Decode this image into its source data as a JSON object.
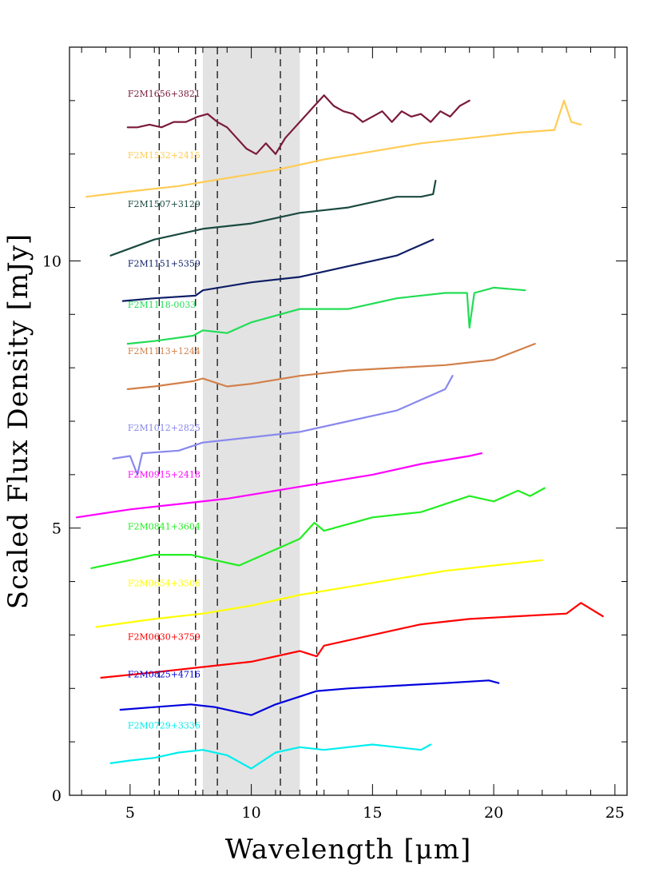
{
  "chart_data": {
    "type": "line",
    "xlabel": "Wavelength [μm]",
    "ylabel": "Scaled Flux Density [mJy]",
    "xlim": [
      2.5,
      25.5
    ],
    "ylim": [
      0,
      14
    ],
    "x_ticks": [
      5,
      10,
      15,
      20,
      25
    ],
    "y_ticks": [
      0,
      5,
      10
    ],
    "shaded_band": [
      8,
      12
    ],
    "dashed_lines": [
      6.2,
      7.7,
      8.6,
      11.2,
      12.7
    ],
    "grid": false,
    "series": [
      {
        "name": "F2M1656+3821",
        "color": "#7a1a3a",
        "x": [
          4.9,
          5.3,
          5.8,
          6.3,
          6.8,
          7.3,
          7.8,
          8.2,
          8.6,
          9.0,
          9.4,
          9.8,
          10.2,
          10.6,
          11.0,
          11.4,
          11.8,
          12.2,
          12.6,
          13.0,
          13.4,
          13.8,
          14.2,
          14.6,
          15.0,
          15.4,
          15.8,
          16.2,
          16.6,
          17.0,
          17.4,
          17.8,
          18.2,
          18.6,
          19.0
        ],
        "y": [
          12.5,
          12.5,
          12.55,
          12.5,
          12.6,
          12.6,
          12.7,
          12.75,
          12.6,
          12.5,
          12.3,
          12.1,
          12.0,
          12.2,
          12.0,
          12.3,
          12.5,
          12.7,
          12.9,
          13.1,
          12.9,
          12.8,
          12.75,
          12.6,
          12.7,
          12.8,
          12.6,
          12.8,
          12.7,
          12.75,
          12.6,
          12.8,
          12.7,
          12.9,
          13.0
        ]
      },
      {
        "name": "F2M1532+2415",
        "color": "#ffcc55",
        "x": [
          3.2,
          5,
          7,
          9,
          11,
          13,
          15,
          17,
          19,
          21,
          22.5,
          22.9,
          23.2,
          23.6
        ],
        "y": [
          11.2,
          11.3,
          11.4,
          11.55,
          11.7,
          11.9,
          12.05,
          12.2,
          12.3,
          12.4,
          12.45,
          13.0,
          12.6,
          12.55
        ]
      },
      {
        "name": "F2M1507+3129",
        "color": "#1a4a40",
        "x": [
          4.2,
          6,
          8,
          10,
          12,
          14,
          15,
          16,
          17,
          17.5,
          17.6
        ],
        "y": [
          10.1,
          10.4,
          10.6,
          10.7,
          10.9,
          11.0,
          11.1,
          11.2,
          11.2,
          11.25,
          11.5
        ]
      },
      {
        "name": "F2M1151+5359",
        "color": "#0e1e66",
        "x": [
          4.7,
          6,
          7.7,
          8,
          10,
          12,
          14,
          15,
          16,
          17.5
        ],
        "y": [
          9.25,
          9.3,
          9.35,
          9.45,
          9.6,
          9.7,
          9.9,
          10.0,
          10.1,
          10.4
        ]
      },
      {
        "name": "F2M1118-0033",
        "color": "#22dd55",
        "x": [
          4.9,
          6,
          7.6,
          8,
          9,
          10,
          12,
          14,
          16,
          18,
          18.9,
          19.0,
          19.2,
          20,
          21.3
        ],
        "y": [
          8.45,
          8.5,
          8.6,
          8.7,
          8.65,
          8.85,
          9.1,
          9.1,
          9.3,
          9.4,
          9.4,
          8.75,
          9.4,
          9.5,
          9.45
        ]
      },
      {
        "name": "F2M1113+1244",
        "color": "#d2804a",
        "x": [
          4.9,
          6,
          7.6,
          8,
          9,
          10,
          12,
          14,
          16,
          18,
          20,
          21.7
        ],
        "y": [
          7.6,
          7.65,
          7.75,
          7.8,
          7.65,
          7.7,
          7.85,
          7.95,
          8.0,
          8.05,
          8.15,
          8.45
        ]
      },
      {
        "name": "F2M1012+2825",
        "color": "#8888ee",
        "x": [
          4.3,
          5,
          5.3,
          5.5,
          7,
          8,
          10,
          12,
          14,
          16,
          17,
          18,
          18.3
        ],
        "y": [
          6.3,
          6.35,
          6.0,
          6.4,
          6.45,
          6.6,
          6.7,
          6.8,
          7.0,
          7.2,
          7.4,
          7.6,
          7.85
        ]
      },
      {
        "name": "F2M0915+2418",
        "color": "#ff00ff",
        "x": [
          2.8,
          5,
          7,
          9,
          11,
          13,
          15,
          17,
          19,
          19.5
        ],
        "y": [
          5.2,
          5.35,
          5.45,
          5.55,
          5.7,
          5.85,
          6.0,
          6.2,
          6.35,
          6.4
        ]
      },
      {
        "name": "F2M0841+3604",
        "color": "#22ee22",
        "x": [
          3.4,
          5,
          6,
          7.5,
          8.5,
          9.5,
          10.5,
          12,
          12.6,
          13,
          15,
          17,
          19,
          20,
          21,
          21.5,
          22.1
        ],
        "y": [
          4.25,
          4.4,
          4.5,
          4.5,
          4.4,
          4.3,
          4.5,
          4.8,
          5.1,
          4.95,
          5.2,
          5.3,
          5.6,
          5.5,
          5.7,
          5.6,
          5.75
        ]
      },
      {
        "name": "F2M0654+3506",
        "color": "#ffff00",
        "x": [
          3.6,
          6,
          8,
          10,
          12,
          14,
          16,
          18,
          20,
          22
        ],
        "y": [
          3.15,
          3.3,
          3.4,
          3.55,
          3.75,
          3.9,
          4.05,
          4.2,
          4.3,
          4.4
        ]
      },
      {
        "name": "F2M0630+3759",
        "color": "#ff0000",
        "x": [
          3.8,
          6,
          8,
          10,
          12,
          12.7,
          13,
          15,
          17,
          19,
          21,
          23,
          23.6,
          24.5
        ],
        "y": [
          2.2,
          2.3,
          2.4,
          2.5,
          2.7,
          2.6,
          2.8,
          3.0,
          3.2,
          3.3,
          3.35,
          3.4,
          3.6,
          3.35
        ]
      },
      {
        "name": "F2M0825+4716",
        "color": "#0000dd",
        "x": [
          4.6,
          6,
          7.5,
          8.5,
          10,
          11,
          12.7,
          14,
          16,
          18,
          19.8,
          20.2
        ],
        "y": [
          1.6,
          1.65,
          1.7,
          1.65,
          1.5,
          1.7,
          1.95,
          2.0,
          2.05,
          2.1,
          2.15,
          2.1
        ]
      },
      {
        "name": "F2M0729+3336",
        "color": "#00eeee",
        "x": [
          4.2,
          5,
          6,
          7,
          8,
          9,
          10,
          11,
          12,
          13,
          14,
          15,
          16,
          17,
          17.4
        ],
        "y": [
          0.6,
          0.65,
          0.7,
          0.8,
          0.85,
          0.75,
          0.5,
          0.8,
          0.9,
          0.85,
          0.9,
          0.95,
          0.9,
          0.85,
          0.95
        ]
      }
    ]
  }
}
